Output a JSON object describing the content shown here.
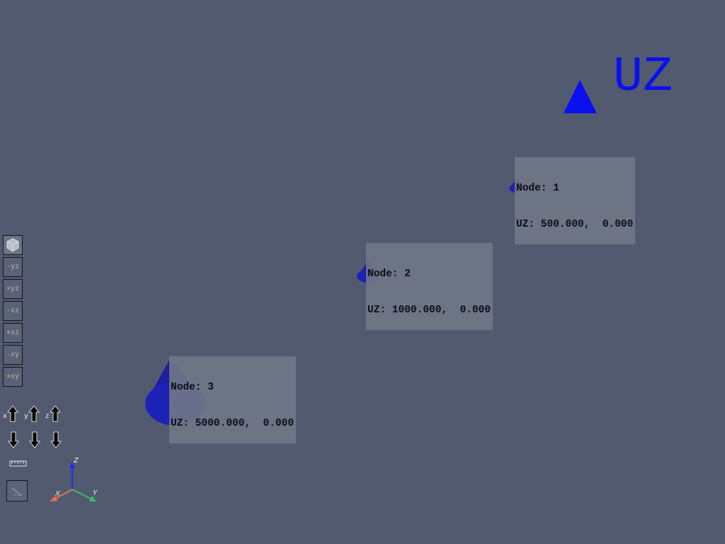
{
  "legend": {
    "label": "UZ",
    "color": "#0a10f0",
    "icon": "triangle-icon"
  },
  "nodes": [
    {
      "title": "Node: 1",
      "value": "UZ: 500.000,  0.000"
    },
    {
      "title": "Node: 2",
      "value": "UZ: 1000.000,  0.000"
    },
    {
      "title": "Node: 3",
      "value": "UZ: 5000.000,  0.000"
    }
  ],
  "toolbar": {
    "views": [
      {
        "icon": "isometric-view-icon",
        "label": ""
      },
      {
        "icon": "view-minus-yz",
        "label": "-yz"
      },
      {
        "icon": "view-plus-yz",
        "label": "+yz"
      },
      {
        "icon": "view-minus-xz",
        "label": "-xz"
      },
      {
        "icon": "view-plus-xz",
        "label": "+xz"
      },
      {
        "icon": "view-minus-xy",
        "label": "-xy"
      },
      {
        "icon": "view-plus-xy",
        "label": "+xy"
      }
    ],
    "rotate_axes": [
      "x",
      "y",
      "z"
    ]
  },
  "triad": {
    "x": "X",
    "y": "Y",
    "z": "Z",
    "x_color": "#e8734f",
    "y_color": "#3fb86a",
    "z_color": "#1b2cf0"
  },
  "colors": {
    "background": "#525a6f",
    "cone": "#1a1fb3"
  }
}
